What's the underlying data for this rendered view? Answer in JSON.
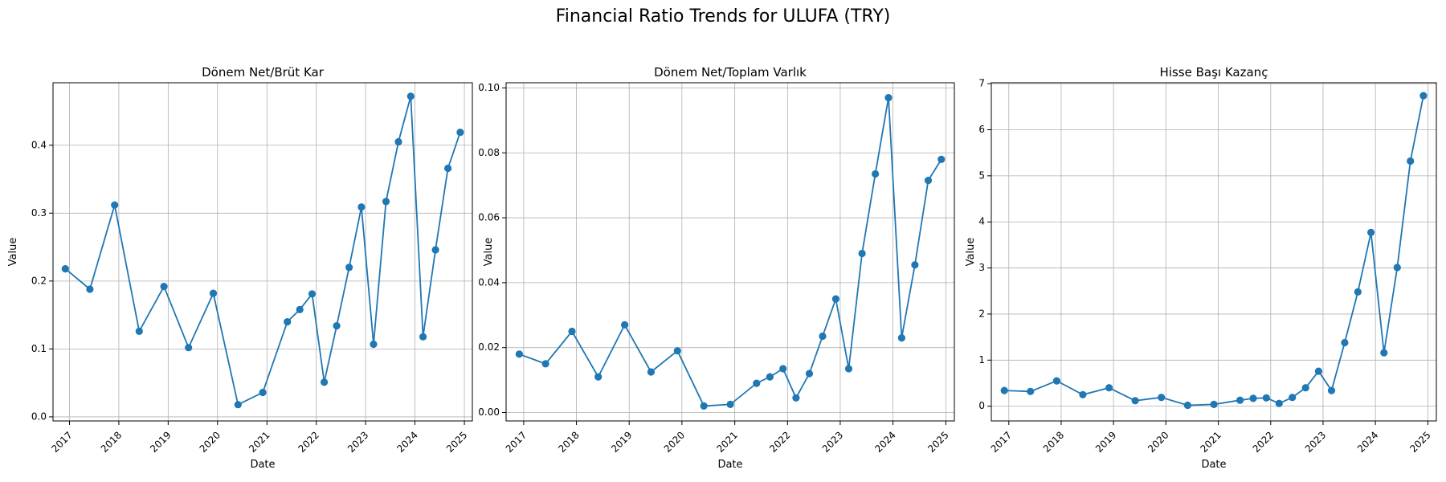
{
  "figure": {
    "title": "Financial Ratio Trends for ULUFA (TRY)"
  },
  "style": {
    "line_color": "#1f77b4",
    "grid_color": "#b0b0b0"
  },
  "chart_data": [
    {
      "type": "line",
      "title": "Dönem Net/Brüt Kar",
      "xlabel": "Date",
      "ylabel": "Value",
      "grid": true,
      "x_ticks": [
        "2017",
        "2018",
        "2019",
        "2020",
        "2021",
        "2022",
        "2023",
        "2024",
        "2025"
      ],
      "y_ticks": [
        "0.0",
        "0.1",
        "0.2",
        "0.3",
        "0.4"
      ],
      "xlim": [
        "2016-09-01",
        "2025-03-01"
      ],
      "ylim": [
        -0.006,
        0.492
      ],
      "series": [
        {
          "x": [
            "2016-12-01",
            "2017-06-01",
            "2017-12-01",
            "2018-06-01",
            "2018-12-01",
            "2019-06-01",
            "2019-12-01",
            "2020-06-01",
            "2020-12-01",
            "2021-06-01",
            "2021-09-01",
            "2021-12-01",
            "2022-03-01",
            "2022-06-01",
            "2022-09-01",
            "2022-12-01",
            "2023-03-01",
            "2023-06-01",
            "2023-09-01",
            "2023-12-01",
            "2024-03-01",
            "2024-06-01",
            "2024-09-01",
            "2024-12-01"
          ],
          "values": [
            0.218,
            0.188,
            0.312,
            0.126,
            0.192,
            0.102,
            0.182,
            0.018,
            0.036,
            0.14,
            0.158,
            0.181,
            0.051,
            0.134,
            0.22,
            0.309,
            0.107,
            0.317,
            0.405,
            0.472,
            0.118,
            0.246,
            0.366,
            0.419
          ]
        }
      ]
    },
    {
      "type": "line",
      "title": "Dönem Net/Toplam Varlık",
      "xlabel": "Date",
      "ylabel": "Value",
      "grid": true,
      "x_ticks": [
        "2017",
        "2018",
        "2019",
        "2020",
        "2021",
        "2022",
        "2023",
        "2024",
        "2025"
      ],
      "y_ticks": [
        "0.00",
        "0.02",
        "0.04",
        "0.06",
        "0.08",
        "0.10"
      ],
      "xlim": [
        "2016-09-01",
        "2025-03-01"
      ],
      "ylim": [
        -0.0026,
        0.1016
      ],
      "series": [
        {
          "x": [
            "2016-12-01",
            "2017-06-01",
            "2017-12-01",
            "2018-06-01",
            "2018-12-01",
            "2019-06-01",
            "2019-12-01",
            "2020-06-01",
            "2020-12-01",
            "2021-06-01",
            "2021-09-01",
            "2021-12-01",
            "2022-03-01",
            "2022-06-01",
            "2022-09-01",
            "2022-12-01",
            "2023-03-01",
            "2023-06-01",
            "2023-09-01",
            "2023-12-01",
            "2024-03-01",
            "2024-06-01",
            "2024-09-01",
            "2024-12-01"
          ],
          "values": [
            0.018,
            0.015,
            0.025,
            0.011,
            0.027,
            0.0125,
            0.019,
            0.002,
            0.0025,
            0.009,
            0.011,
            0.0135,
            0.0045,
            0.012,
            0.0235,
            0.035,
            0.0135,
            0.049,
            0.0735,
            0.097,
            0.023,
            0.0455,
            0.0715,
            0.078
          ]
        }
      ]
    },
    {
      "type": "line",
      "title": "Hisse Başı Kazanç",
      "xlabel": "Date",
      "ylabel": "Value",
      "grid": true,
      "x_ticks": [
        "2017",
        "2018",
        "2019",
        "2020",
        "2021",
        "2022",
        "2023",
        "2024",
        "2025"
      ],
      "y_ticks": [
        "0",
        "1",
        "2",
        "3",
        "4",
        "5",
        "6",
        "7"
      ],
      "xlim": [
        "2016-09-01",
        "2025-03-01"
      ],
      "ylim": [
        -0.32,
        7.02
      ],
      "series": [
        {
          "x": [
            "2016-12-01",
            "2017-06-01",
            "2017-12-01",
            "2018-06-01",
            "2018-12-01",
            "2019-06-01",
            "2019-12-01",
            "2020-06-01",
            "2020-12-01",
            "2021-06-01",
            "2021-09-01",
            "2021-12-01",
            "2022-03-01",
            "2022-06-01",
            "2022-09-01",
            "2022-12-01",
            "2023-03-01",
            "2023-06-01",
            "2023-09-01",
            "2023-12-01",
            "2024-03-01",
            "2024-06-01",
            "2024-09-01",
            "2024-12-01"
          ],
          "values": [
            0.34,
            0.32,
            0.55,
            0.25,
            0.4,
            0.12,
            0.19,
            0.02,
            0.04,
            0.13,
            0.17,
            0.18,
            0.06,
            0.19,
            0.4,
            0.76,
            0.34,
            1.38,
            2.48,
            3.77,
            1.16,
            3.01,
            5.32,
            6.74
          ]
        }
      ]
    }
  ]
}
